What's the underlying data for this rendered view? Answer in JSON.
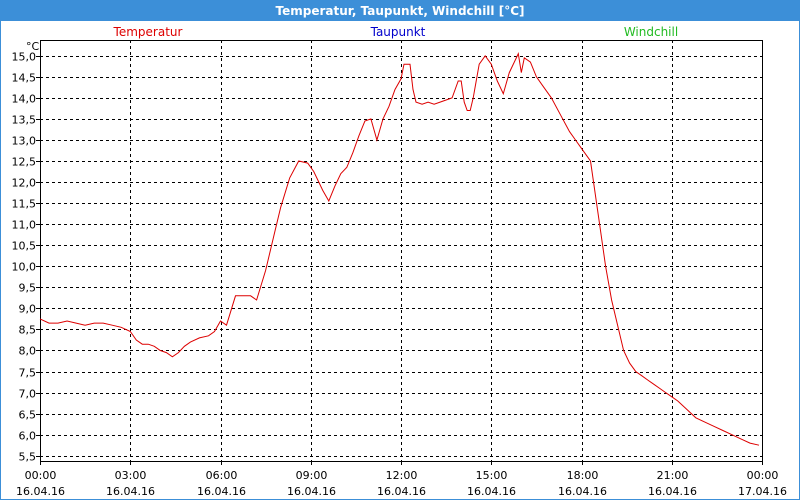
{
  "window": {
    "title": "Temperatur, Taupunkt, Windchill [°C]"
  },
  "chart_data": {
    "type": "line",
    "title": "Temperatur, Taupunkt, Windchill [°C]",
    "ylabel": "°C",
    "ylim": [
      5.375,
      15.375
    ],
    "yticks": [
      5.5,
      6.0,
      6.5,
      7.0,
      7.5,
      8.0,
      8.5,
      9.0,
      9.5,
      10.0,
      10.5,
      11.0,
      11.5,
      12.0,
      12.5,
      13.0,
      13.5,
      14.0,
      14.5,
      15.0
    ],
    "ytick_labels": [
      "5,5",
      "6,0",
      "6,5",
      "7,0",
      "7,5",
      "8,0",
      "8,5",
      "9,0",
      "9,5",
      "10,0",
      "10,5",
      "11,0",
      "11,5",
      "12,0",
      "12,5",
      "13,0",
      "13,5",
      "14,0",
      "14,5",
      "15,0"
    ],
    "xlim": [
      0,
      24
    ],
    "xticks": [
      0,
      3,
      6,
      9,
      12,
      15,
      18,
      21,
      24
    ],
    "xtick_labels": [
      [
        "00:00",
        "16.04.16"
      ],
      [
        "03:00",
        "16.04.16"
      ],
      [
        "06:00",
        "16.04.16"
      ],
      [
        "09:00",
        "16.04.16"
      ],
      [
        "12:00",
        "16.04.16"
      ],
      [
        "15:00",
        "16.04.16"
      ],
      [
        "18:00",
        "16.04.16"
      ],
      [
        "21:00",
        "16.04.16"
      ],
      [
        "00:00",
        "17.04.16"
      ]
    ],
    "grid": true,
    "legend_position": "top",
    "colors": {
      "Temperatur": "#dd0000",
      "Taupunkt": "#0000cc",
      "Windchill": "#22bb22"
    },
    "series": [
      {
        "name": "Temperatur",
        "x": [
          0,
          0.3,
          0.6,
          0.9,
          1.2,
          1.5,
          1.8,
          2.1,
          2.4,
          2.7,
          3.0,
          3.2,
          3.4,
          3.6,
          3.8,
          4.0,
          4.2,
          4.4,
          4.6,
          4.8,
          5.0,
          5.3,
          5.6,
          5.8,
          6.0,
          6.2,
          6.5,
          6.8,
          7.0,
          7.2,
          7.5,
          7.8,
          8.0,
          8.3,
          8.6,
          8.9,
          9.1,
          9.4,
          9.6,
          9.8,
          10.0,
          10.2,
          10.4,
          10.6,
          10.8,
          11.0,
          11.2,
          11.4,
          11.6,
          11.8,
          12.0,
          12.1,
          12.3,
          12.4,
          12.5,
          12.7,
          12.9,
          13.1,
          13.3,
          13.5,
          13.7,
          13.9,
          14.0,
          14.1,
          14.2,
          14.3,
          14.4,
          14.5,
          14.6,
          14.8,
          15.0,
          15.2,
          15.4,
          15.6,
          15.8,
          15.9,
          16.0,
          16.1,
          16.3,
          16.5,
          16.7,
          17.0,
          17.3,
          17.6,
          17.8,
          18.0,
          18.3,
          18.6,
          18.8,
          19.0,
          19.2,
          19.4,
          19.6,
          19.8,
          20.0,
          20.2,
          20.4,
          20.6,
          20.8,
          21.0,
          21.2,
          21.5,
          21.8,
          22.1,
          22.4,
          22.7,
          23.0,
          23.3,
          23.6,
          23.9
        ],
        "values": [
          8.75,
          8.65,
          8.65,
          8.7,
          8.65,
          8.6,
          8.65,
          8.65,
          8.6,
          8.55,
          8.45,
          8.25,
          8.15,
          8.15,
          8.1,
          8.0,
          7.95,
          7.85,
          7.95,
          8.1,
          8.2,
          8.3,
          8.35,
          8.45,
          8.7,
          8.6,
          9.3,
          9.3,
          9.3,
          9.2,
          9.9,
          10.8,
          11.4,
          12.1,
          12.5,
          12.45,
          12.25,
          11.8,
          11.55,
          11.9,
          12.2,
          12.35,
          12.7,
          13.1,
          13.45,
          13.5,
          13.0,
          13.5,
          13.8,
          14.2,
          14.45,
          14.8,
          14.8,
          14.2,
          13.9,
          13.85,
          13.9,
          13.85,
          13.9,
          13.95,
          14.0,
          14.4,
          14.4,
          13.9,
          13.7,
          13.7,
          14.0,
          14.4,
          14.8,
          15.0,
          14.8,
          14.4,
          14.1,
          14.6,
          14.9,
          15.05,
          14.6,
          14.95,
          14.85,
          14.5,
          14.3,
          14.0,
          13.6,
          13.2,
          13.0,
          12.8,
          12.5,
          11.0,
          10.0,
          9.2,
          8.6,
          8.0,
          7.7,
          7.5,
          7.4,
          7.3,
          7.2,
          7.1,
          7.0,
          6.9,
          6.8,
          6.6,
          6.4,
          6.3,
          6.2,
          6.1,
          6.0,
          5.9,
          5.8,
          5.75
        ]
      },
      {
        "name": "Taupunkt",
        "x": [],
        "values": []
      },
      {
        "name": "Windchill",
        "x": [],
        "values": []
      }
    ]
  }
}
